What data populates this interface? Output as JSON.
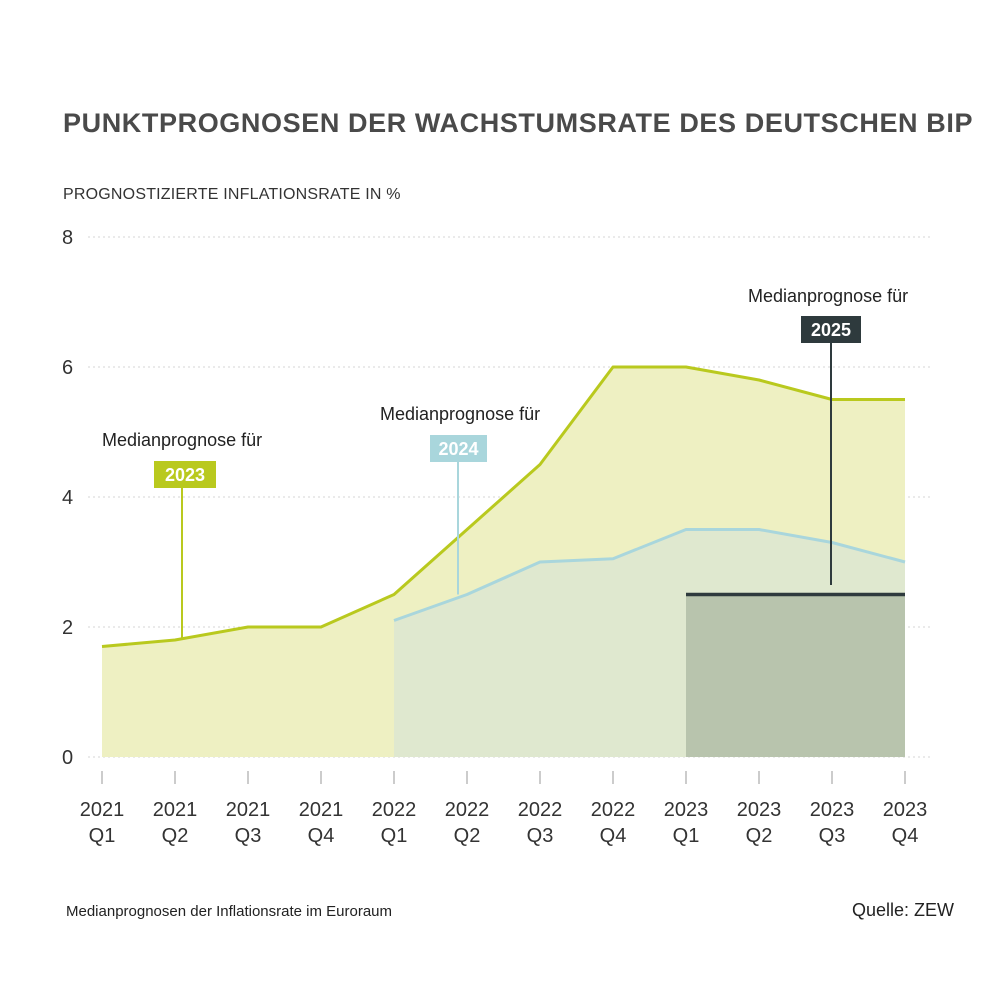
{
  "header": {
    "title": "PUNKTPROGNOSEN DER WACHSTUMSRATE DES DEUTSCHEN BIP",
    "y_axis_label": "PROGNOSTIZIERTE INFLATIONSRATE IN %"
  },
  "footer": {
    "note": "Medianprognosen der Inflationsrate im Euroraum",
    "source": "Quelle: ZEW"
  },
  "chart_data": {
    "type": "area",
    "title": "PUNKTPROGNOSEN DER WACHSTUMSRATE DES DEUTSCHEN BIP",
    "ylabel": "PROGNOSTIZIERTE INFLATIONSRATE IN %",
    "xlabel": "",
    "ylim": [
      0,
      8
    ],
    "yticks": [
      0,
      2,
      4,
      6,
      8
    ],
    "grid": true,
    "categories": [
      [
        "2021",
        "Q1"
      ],
      [
        "2021",
        "Q2"
      ],
      [
        "2021",
        "Q3"
      ],
      [
        "2021",
        "Q4"
      ],
      [
        "2022",
        "Q1"
      ],
      [
        "2022",
        "Q2"
      ],
      [
        "2022",
        "Q3"
      ],
      [
        "2022",
        "Q4"
      ],
      [
        "2023",
        "Q1"
      ],
      [
        "2023",
        "Q2"
      ],
      [
        "2023",
        "Q3"
      ],
      [
        "2023",
        "Q4"
      ]
    ],
    "series": [
      {
        "name": "2023",
        "label": "Medianprognose für",
        "color": "#b9c91e",
        "fill": "#eef0c2",
        "values": [
          1.7,
          1.8,
          2.0,
          2.0,
          2.5,
          3.5,
          4.5,
          6.0,
          6.0,
          5.8,
          5.5,
          5.5
        ]
      },
      {
        "name": "2024",
        "label": "Medianprognose für",
        "color": "#a9d6dc",
        "fill": "#dfe8cf",
        "values": [
          null,
          null,
          null,
          null,
          2.1,
          2.5,
          3.0,
          3.05,
          3.5,
          3.5,
          3.3,
          3.0
        ]
      },
      {
        "name": "2025",
        "label": "Medianprognose für",
        "color": "#2e3a3d",
        "fill": "#b8c4ad",
        "values": [
          null,
          null,
          null,
          null,
          null,
          null,
          null,
          null,
          2.5,
          2.5,
          2.5,
          2.5
        ]
      }
    ]
  }
}
